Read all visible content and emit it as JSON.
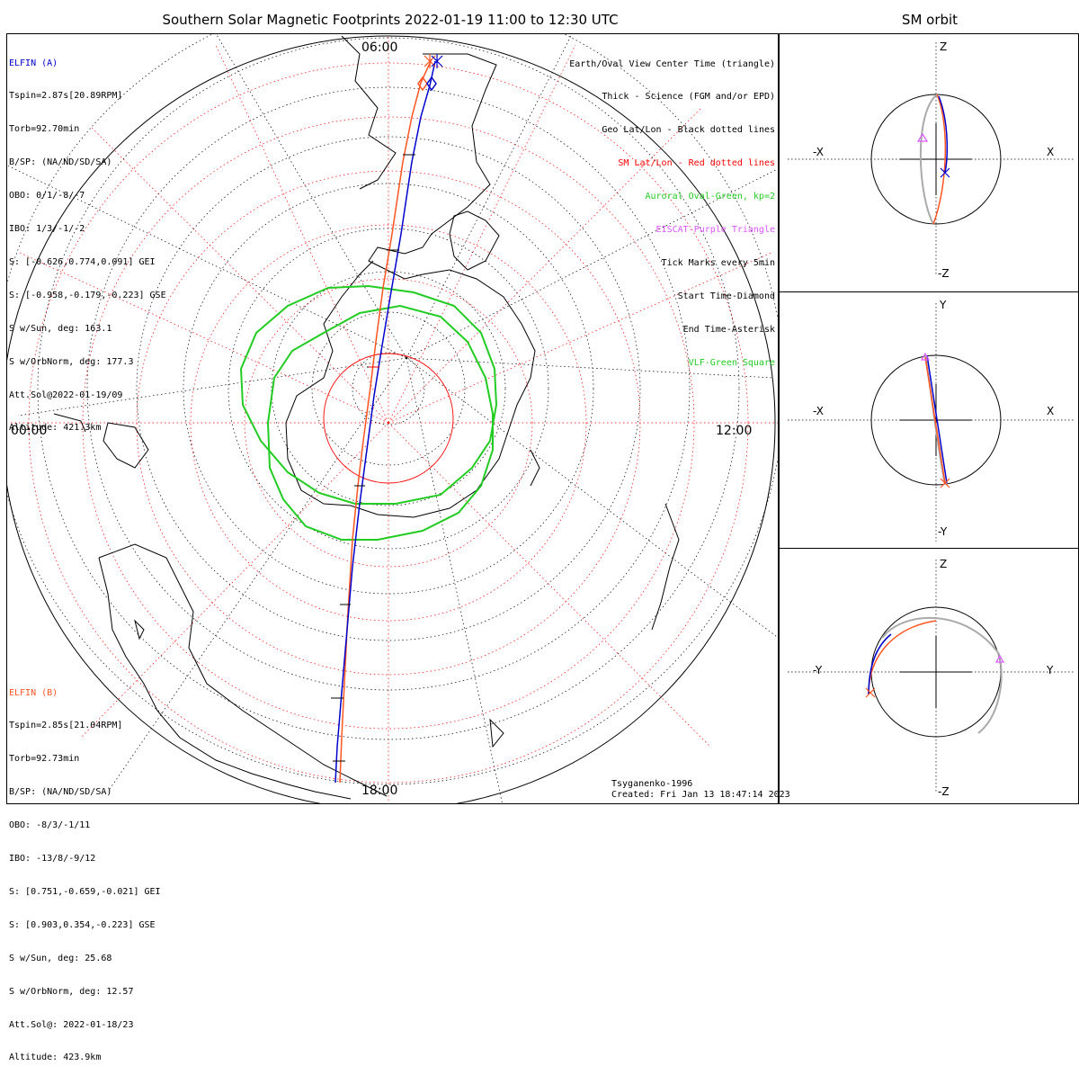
{
  "title": "Southern Solar Magnetic Footprints 2022-01-19 11:00 to 12:30 UTC",
  "orbit_title": "SM orbit",
  "elfin_a": {
    "name": "ELFIN (A)",
    "color": "#0000cc",
    "lines": [
      "Tspin=2.87s[20.89RPM]",
      "Torb=92.70min",
      "B/SP: (NA/ND/SD/SA)",
      "OBO: 0/1/-8/-7",
      "IBO: 1/3/-1/-2",
      "S: [-0.626,0.774,0.091] GEI",
      "S: [-0.958,-0.179,-0.223] GSE",
      "S w/Sun, deg: 163.1",
      "S w/OrbNorm, deg: 177.3",
      "Att.Sol@2022-01-19/09",
      "Altitude: 421.3km"
    ]
  },
  "elfin_b": {
    "name": "ELFIN (B)",
    "color": "#ff5522",
    "lines": [
      "Tspin=2.85s[21.04RPM]",
      "Torb=92.73min",
      "B/SP: (NA/ND/SD/SA)",
      "OBO: -8/3/-1/11",
      "IBO: -13/8/-9/12",
      "S: [0.751,-0.659,-0.021] GEI",
      "S: [0.903,0.354,-0.223] GSE",
      "S w/Sun, deg: 25.68",
      "S w/OrbNorm, deg: 12.57",
      "Att.Sol@: 2022-01-18/23",
      "Altitude: 423.9km"
    ]
  },
  "legend": [
    {
      "text": "Earth/Oval View Center Time (triangle)",
      "color": "#000000"
    },
    {
      "text": "Thick - Science (FGM and/or EPD)",
      "color": "#000000"
    },
    {
      "text": "Geo Lat/Lon - Black dotted lines",
      "color": "#000000"
    },
    {
      "text": "SM Lat/Lon - Red dotted lines",
      "color": "#ff0000"
    },
    {
      "text": "Auroral Oval-Green, kp=2",
      "color": "#22cc22"
    },
    {
      "text": "EISCAT-Purple Triangle",
      "color": "#dd55ff"
    },
    {
      "text": "Tick Marks every 5min",
      "color": "#000000"
    },
    {
      "text": "Start Time-Diamond",
      "color": "#000000"
    },
    {
      "text": "End Time-Asterisk",
      "color": "#000000"
    },
    {
      "text": "VLF-Green Square",
      "color": "#22cc22"
    }
  ],
  "hour_labels": {
    "top": "06:00",
    "left": "00:00",
    "right": "12:00",
    "bottom": "18:00"
  },
  "model": "Tsyganenko-1996",
  "created": "Created: Fri Jan 13 18:47:14 2023",
  "panels": {
    "xz": {
      "up": "Z",
      "down": "-Z",
      "left": "-X",
      "right": "X"
    },
    "xy": {
      "up": "Y",
      "down": "-Y",
      "left": "-X",
      "right": "X"
    },
    "yz": {
      "up": "Z",
      "down": "-Z",
      "left": "-Y",
      "right": "Y"
    }
  },
  "colors": {
    "oval": "#22cc22",
    "sm_grid": "#ff0000",
    "track_a": "#0000cc",
    "track_b": "#ff5522",
    "orbit_gray": "#aaaaaa",
    "eiscat": "#dd55ff"
  }
}
